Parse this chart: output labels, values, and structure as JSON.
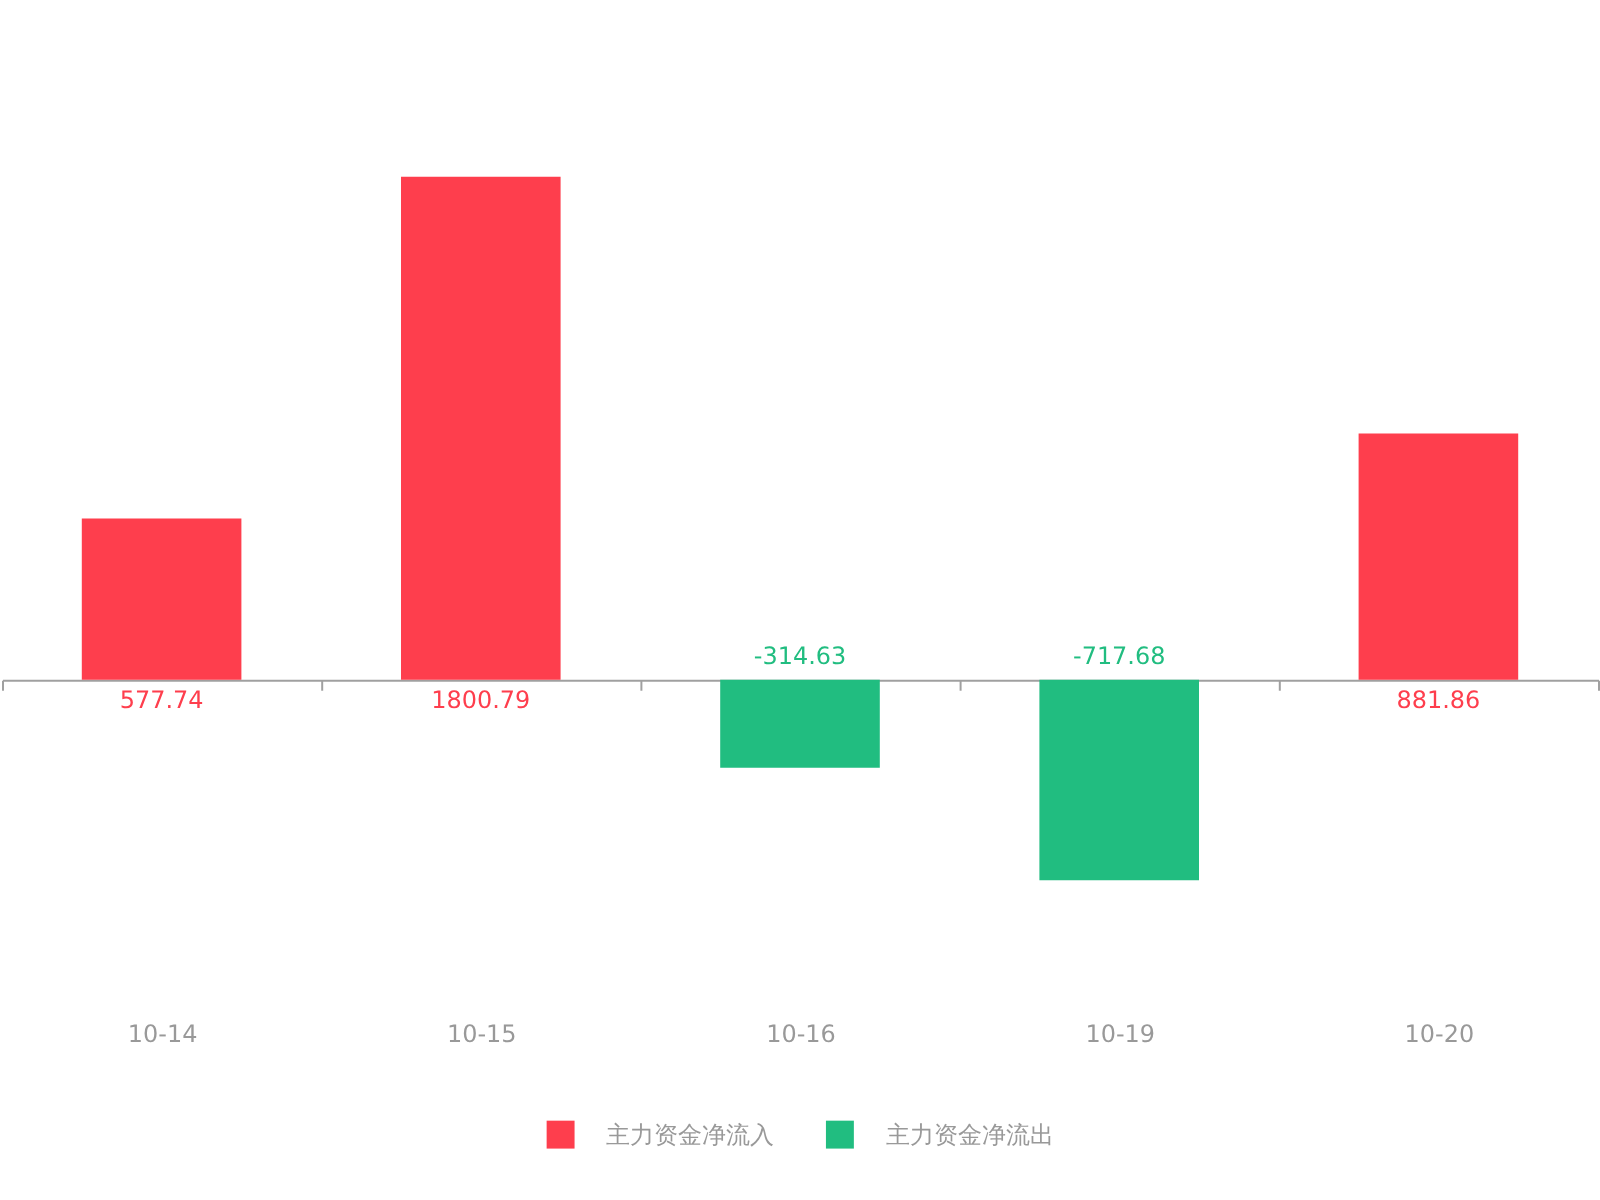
{
  "chart_data": {
    "type": "bar",
    "categories": [
      "10-14",
      "10-15",
      "10-16",
      "10-19",
      "10-20"
    ],
    "series": [
      {
        "name": "主力资金净流入",
        "color": "#fe3e4d",
        "values": [
          577.74,
          1800.79,
          null,
          null,
          881.86
        ]
      },
      {
        "name": "主力资金净流出",
        "color": "#21bd80",
        "values": [
          null,
          null,
          -314.63,
          -717.68,
          null
        ]
      }
    ],
    "stacked": true,
    "data_labels": true,
    "legend": "bottom",
    "grid": false
  }
}
